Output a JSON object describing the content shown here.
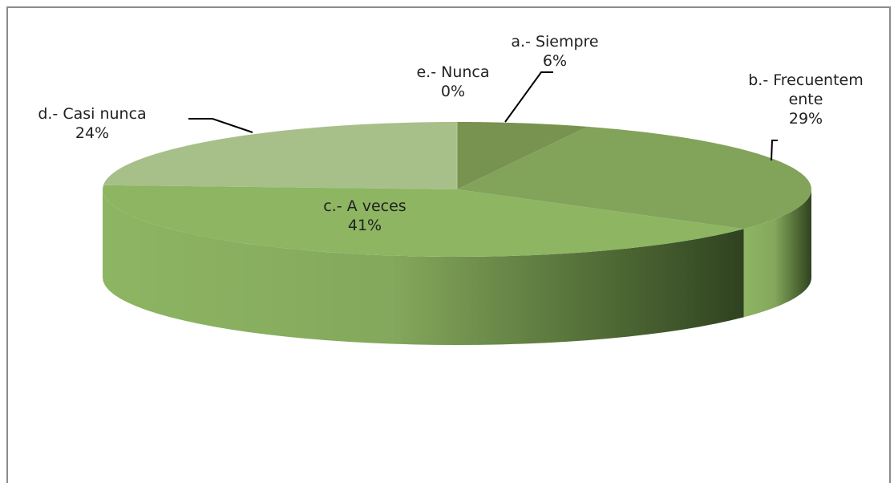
{
  "chart_data": {
    "type": "pie3d",
    "categories": [
      "a.- Siempre",
      "b.- Frecuentemente",
      "c.- A veces",
      "d.- Casi nunca",
      "e.- Nunca"
    ],
    "values": [
      6,
      29,
      41,
      24,
      0
    ],
    "value_labels": [
      "6%",
      "29%",
      "41%",
      "24%",
      "0%"
    ],
    "colors": [
      "#77934f",
      "#82a35a",
      "#8db562",
      "#a7c08a",
      "#b4cc98"
    ]
  }
}
